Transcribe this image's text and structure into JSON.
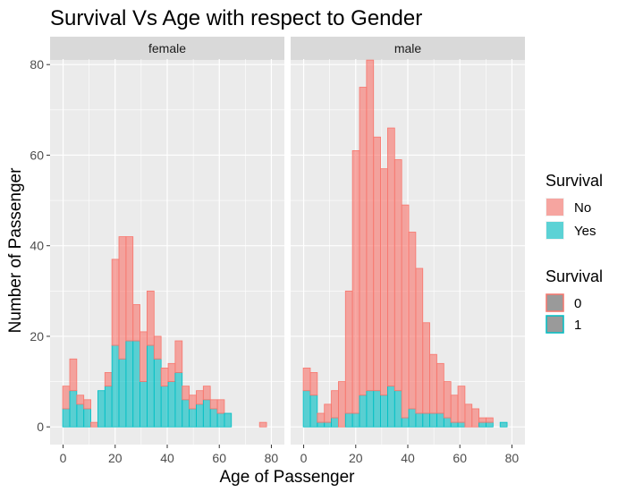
{
  "chart_data": {
    "type": "bar",
    "title": "Survival Vs Age with respect to Gender",
    "xlabel": "Age of Passenger",
    "ylabel": "Number of Passenger",
    "xlim": [
      -5,
      85
    ],
    "ylim": [
      0,
      80
    ],
    "x_ticks": [
      "0",
      "20",
      "40",
      "60",
      "80"
    ],
    "y_ticks": [
      "0",
      "20",
      "40",
      "60",
      "80"
    ],
    "bin_width": 2.7,
    "bin_starts": [
      -0.15,
      2.55,
      5.25,
      7.95,
      10.65,
      13.35,
      16.05,
      18.75,
      21.45,
      24.15,
      26.85,
      29.55,
      32.25,
      34.95,
      37.65,
      40.35,
      43.05,
      45.75,
      48.45,
      51.15,
      53.85,
      56.55,
      59.25,
      61.95,
      64.65,
      67.35,
      70.05,
      72.75,
      75.45,
      78.15
    ],
    "grid": true,
    "legend_position": "right",
    "legends": [
      {
        "title": "Survival",
        "entries": [
          {
            "label": "No",
            "color": "#F8766D"
          },
          {
            "label": "Yes",
            "color": "#00BFC4"
          }
        ]
      },
      {
        "title": "Survival",
        "entries": [
          {
            "label": "0",
            "border": "#F8766D"
          },
          {
            "label": "1",
            "border": "#00BFC4"
          }
        ]
      }
    ],
    "colors": {
      "No": "#F8766D",
      "Yes": "#00BFC4",
      "panel_bg": "#EBEBEB",
      "strip_bg": "#D9D9D9"
    },
    "panels": [
      {
        "label": "female",
        "series": [
          {
            "name": "No",
            "values": [
              5,
              7,
              2,
              2,
              1,
              0,
              3,
              19,
              27,
              23,
              8,
              11,
              12,
              5,
              4,
              4,
              7,
              3,
              3,
              3,
              3,
              2,
              3,
              0,
              0,
              0,
              0,
              0,
              1,
              0
            ]
          },
          {
            "name": "Yes",
            "values": [
              4,
              8,
              5,
              4,
              0,
              8,
              9,
              18,
              15,
              19,
              19,
              10,
              18,
              15,
              9,
              10,
              12,
              6,
              4,
              5,
              6,
              4,
              3,
              3,
              0,
              0,
              0,
              0,
              0,
              0
            ]
          }
        ]
      },
      {
        "label": "male",
        "series": [
          {
            "name": "No",
            "values": [
              5,
              5,
              2,
              4,
              6,
              10,
              27,
              58,
              68,
              73,
              56,
              50,
              57,
              51,
              47,
              39,
              32,
              20,
              13,
              11,
              8,
              6,
              8,
              5,
              4,
              1,
              1,
              0,
              0,
              0
            ]
          },
          {
            "name": "Yes",
            "values": [
              8,
              7,
              1,
              1,
              2,
              0,
              3,
              3,
              7,
              8,
              8,
              7,
              9,
              8,
              2,
              4,
              3,
              3,
              3,
              3,
              2,
              1,
              1,
              0,
              0,
              1,
              1,
              0,
              1,
              0
            ]
          }
        ]
      }
    ]
  }
}
